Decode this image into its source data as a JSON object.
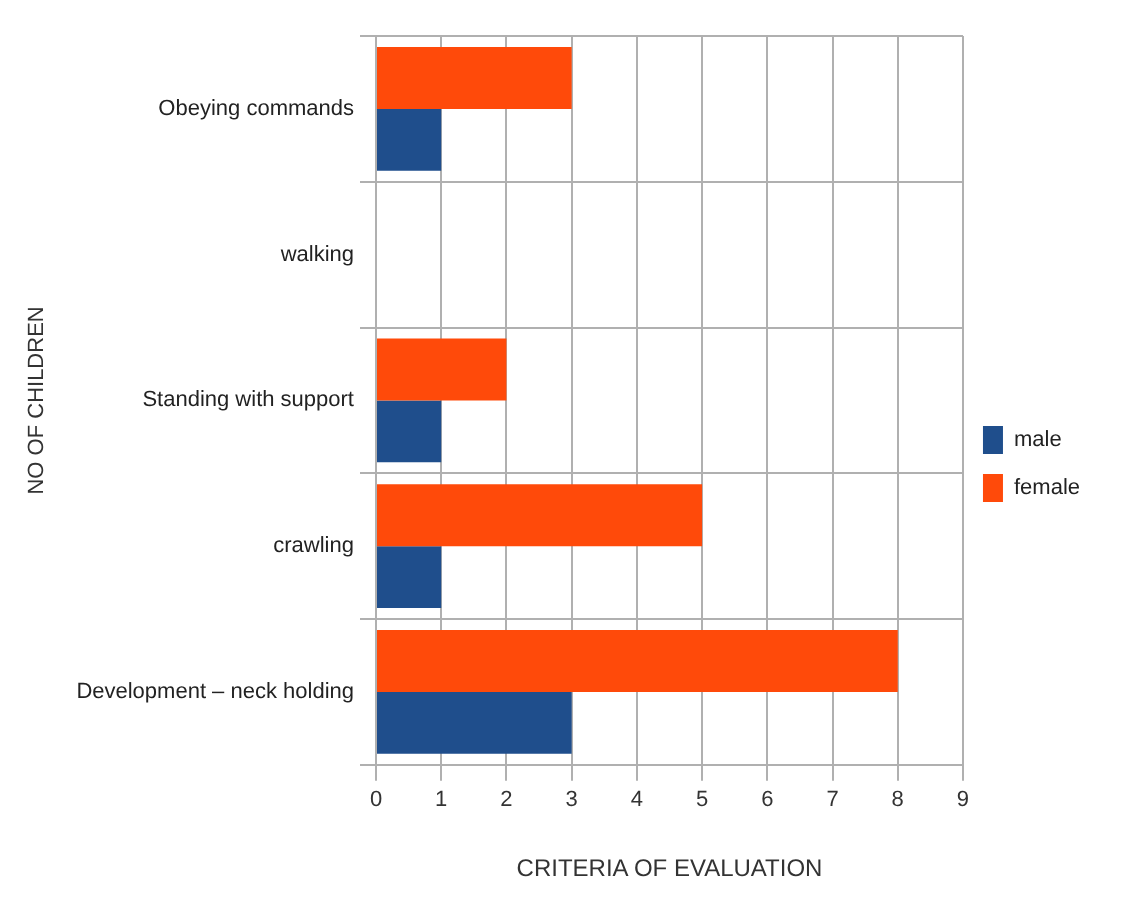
{
  "chart_data": {
    "type": "bar",
    "orientation": "horizontal",
    "categories": [
      "Obeying commands",
      "walking",
      "Standing with support",
      "crawling",
      "Development – neck holding"
    ],
    "series": [
      {
        "name": "male",
        "color": "#1f4e8c",
        "values": [
          1,
          0,
          1,
          1,
          3
        ]
      },
      {
        "name": "female",
        "color": "#ff4a0a",
        "values": [
          3,
          0,
          2,
          5,
          8
        ]
      }
    ],
    "xlim": [
      0,
      9
    ],
    "xticks": [
      0,
      1,
      2,
      3,
      4,
      5,
      6,
      7,
      8,
      9
    ],
    "xlabel": "CRITERIA OF EVALUATION",
    "ylabel": "NO OF CHILDREN",
    "grid": true,
    "legend": "right"
  }
}
